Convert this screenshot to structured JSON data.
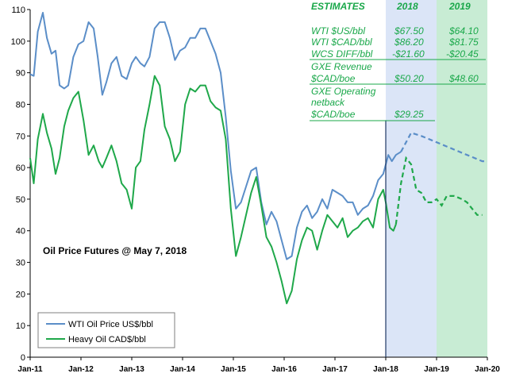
{
  "chart_data": {
    "type": "line",
    "annotation": "Oil Price Futures @ May 7, 2018",
    "y_ticks": [
      "0",
      "10",
      "20",
      "30",
      "40",
      "50",
      "60",
      "70",
      "80",
      "90",
      "100",
      "110"
    ],
    "ylim": [
      0,
      110
    ],
    "x_ticks": [
      "Jan-11",
      "Jan-12",
      "Jan-13",
      "Jan-14",
      "Jan-15",
      "Jan-16",
      "Jan-17",
      "Jan-18",
      "Jan-19",
      "Jan-20"
    ],
    "xlim": [
      2011,
      2020
    ],
    "shaded_periods": [
      {
        "label": "2018",
        "from": 2018.0,
        "to": 2019.0,
        "color": "#dbe5f7"
      },
      {
        "label": "2019",
        "from": 2019.0,
        "to": 2020.0,
        "color": "#c8ecd4"
      }
    ],
    "marker_x": 2018.0,
    "series": [
      {
        "name": "WTI Oil Price US$/bbl",
        "color": "#5b8ec8",
        "actual": [
          [
            2011.0,
            89.5
          ],
          [
            2011.07,
            89
          ],
          [
            2011.15,
            103
          ],
          [
            2011.25,
            109
          ],
          [
            2011.33,
            101
          ],
          [
            2011.42,
            96
          ],
          [
            2011.5,
            97
          ],
          [
            2011.58,
            86
          ],
          [
            2011.67,
            85
          ],
          [
            2011.75,
            86
          ],
          [
            2011.85,
            95
          ],
          [
            2011.95,
            99
          ],
          [
            2012.05,
            100
          ],
          [
            2012.15,
            106
          ],
          [
            2012.25,
            104
          ],
          [
            2012.33,
            95
          ],
          [
            2012.42,
            83
          ],
          [
            2012.5,
            87
          ],
          [
            2012.6,
            93
          ],
          [
            2012.7,
            95
          ],
          [
            2012.8,
            89
          ],
          [
            2012.9,
            88
          ],
          [
            2013.0,
            93
          ],
          [
            2013.08,
            95
          ],
          [
            2013.17,
            93
          ],
          [
            2013.25,
            92
          ],
          [
            2013.35,
            95
          ],
          [
            2013.45,
            104
          ],
          [
            2013.55,
            106
          ],
          [
            2013.65,
            106
          ],
          [
            2013.75,
            101
          ],
          [
            2013.85,
            94
          ],
          [
            2013.95,
            97
          ],
          [
            2014.05,
            98
          ],
          [
            2014.15,
            101
          ],
          [
            2014.25,
            101
          ],
          [
            2014.35,
            104
          ],
          [
            2014.45,
            104
          ],
          [
            2014.55,
            100
          ],
          [
            2014.65,
            96
          ],
          [
            2014.75,
            90
          ],
          [
            2014.85,
            76
          ],
          [
            2014.95,
            59
          ],
          [
            2015.05,
            47
          ],
          [
            2015.15,
            49
          ],
          [
            2015.25,
            54
          ],
          [
            2015.35,
            59
          ],
          [
            2015.45,
            60
          ],
          [
            2015.55,
            49
          ],
          [
            2015.65,
            42
          ],
          [
            2015.75,
            46
          ],
          [
            2015.85,
            43
          ],
          [
            2015.95,
            37
          ],
          [
            2016.05,
            31
          ],
          [
            2016.15,
            32
          ],
          [
            2016.25,
            41
          ],
          [
            2016.35,
            46
          ],
          [
            2016.45,
            48
          ],
          [
            2016.55,
            44
          ],
          [
            2016.65,
            46
          ],
          [
            2016.75,
            50
          ],
          [
            2016.85,
            47
          ],
          [
            2016.95,
            53
          ],
          [
            2017.05,
            52
          ],
          [
            2017.15,
            51
          ],
          [
            2017.25,
            49
          ],
          [
            2017.35,
            49
          ],
          [
            2017.45,
            45
          ],
          [
            2017.55,
            47
          ],
          [
            2017.65,
            48
          ],
          [
            2017.75,
            51
          ],
          [
            2017.85,
            56
          ],
          [
            2017.95,
            58
          ],
          [
            2018.05,
            64
          ],
          [
            2018.12,
            62
          ],
          [
            2018.2,
            64
          ],
          [
            2018.3,
            65
          ]
        ],
        "forecast": [
          [
            2018.3,
            65
          ],
          [
            2018.4,
            68
          ],
          [
            2018.5,
            71
          ],
          [
            2018.7,
            70
          ],
          [
            2019.0,
            68
          ],
          [
            2019.3,
            66
          ],
          [
            2019.6,
            64
          ],
          [
            2019.9,
            62
          ],
          [
            2020.0,
            62
          ]
        ]
      },
      {
        "name": "Heavy Oil CAD$/bbl",
        "color": "#1fa84a",
        "actual": [
          [
            2011.0,
            63
          ],
          [
            2011.07,
            55
          ],
          [
            2011.15,
            69
          ],
          [
            2011.25,
            77
          ],
          [
            2011.33,
            71
          ],
          [
            2011.42,
            66
          ],
          [
            2011.5,
            58
          ],
          [
            2011.58,
            63
          ],
          [
            2011.67,
            73
          ],
          [
            2011.75,
            78
          ],
          [
            2011.85,
            82
          ],
          [
            2011.95,
            84
          ],
          [
            2012.05,
            75
          ],
          [
            2012.15,
            64
          ],
          [
            2012.25,
            67
          ],
          [
            2012.35,
            62
          ],
          [
            2012.42,
            60
          ],
          [
            2012.5,
            63
          ],
          [
            2012.6,
            67
          ],
          [
            2012.7,
            62
          ],
          [
            2012.8,
            55
          ],
          [
            2012.9,
            53
          ],
          [
            2013.0,
            47
          ],
          [
            2013.08,
            60
          ],
          [
            2013.17,
            62
          ],
          [
            2013.25,
            72
          ],
          [
            2013.35,
            80
          ],
          [
            2013.45,
            89
          ],
          [
            2013.55,
            86
          ],
          [
            2013.65,
            73
          ],
          [
            2013.75,
            69
          ],
          [
            2013.85,
            62
          ],
          [
            2013.95,
            65
          ],
          [
            2014.05,
            80
          ],
          [
            2014.15,
            85
          ],
          [
            2014.25,
            84
          ],
          [
            2014.35,
            86
          ],
          [
            2014.45,
            86
          ],
          [
            2014.55,
            81
          ],
          [
            2014.65,
            79
          ],
          [
            2014.75,
            78
          ],
          [
            2014.85,
            69
          ],
          [
            2014.95,
            47
          ],
          [
            2015.05,
            32
          ],
          [
            2015.15,
            38
          ],
          [
            2015.25,
            45
          ],
          [
            2015.35,
            52
          ],
          [
            2015.45,
            57
          ],
          [
            2015.55,
            48
          ],
          [
            2015.65,
            38
          ],
          [
            2015.75,
            35
          ],
          [
            2015.85,
            30
          ],
          [
            2015.95,
            24
          ],
          [
            2016.05,
            17
          ],
          [
            2016.15,
            21
          ],
          [
            2016.25,
            31
          ],
          [
            2016.35,
            37
          ],
          [
            2016.45,
            41
          ],
          [
            2016.55,
            40
          ],
          [
            2016.65,
            34
          ],
          [
            2016.75,
            40
          ],
          [
            2016.85,
            45
          ],
          [
            2016.95,
            43
          ],
          [
            2017.05,
            41
          ],
          [
            2017.15,
            44
          ],
          [
            2017.25,
            38
          ],
          [
            2017.35,
            40
          ],
          [
            2017.45,
            41
          ],
          [
            2017.55,
            43
          ],
          [
            2017.65,
            44
          ],
          [
            2017.75,
            41
          ],
          [
            2017.85,
            50
          ],
          [
            2017.95,
            53
          ],
          [
            2018.0,
            49
          ],
          [
            2018.08,
            41
          ],
          [
            2018.15,
            40
          ],
          [
            2018.2,
            42
          ]
        ],
        "forecast": [
          [
            2018.2,
            42
          ],
          [
            2018.3,
            55
          ],
          [
            2018.4,
            63
          ],
          [
            2018.5,
            61
          ],
          [
            2018.6,
            53
          ],
          [
            2018.7,
            52
          ],
          [
            2018.8,
            49
          ],
          [
            2018.9,
            49
          ],
          [
            2019.0,
            50
          ],
          [
            2019.1,
            48
          ],
          [
            2019.2,
            51
          ],
          [
            2019.35,
            51
          ],
          [
            2019.5,
            50
          ],
          [
            2019.6,
            49
          ],
          [
            2019.7,
            47
          ],
          [
            2019.8,
            45
          ],
          [
            2019.9,
            45
          ]
        ]
      }
    ],
    "estimates": {
      "title": "ESTIMATES",
      "col_2018": "2018",
      "col_2019": "2019",
      "rows": [
        {
          "label": "WTI $US/bbl",
          "v2018": "$67.50",
          "v2019": "$64.10"
        },
        {
          "label": "WTI $CAD/bbl",
          "v2018": "$86.20",
          "v2019": "$81.75"
        },
        {
          "label": "WCS DIFF/bbl",
          "v2018": "-$21.60",
          "v2019": "-$20.45"
        }
      ],
      "revenue_label_1": "GXE Revenue",
      "revenue_label_2": "$CAD/boe",
      "revenue_2018": "$50.20",
      "revenue_2019": "$48.60",
      "netback_label_1": "GXE Operating",
      "netback_label_2": "netback",
      "netback_label_3": "$CAD/boe",
      "netback_2018": "$29.25"
    },
    "legend_position": "bottom-left",
    "grid": false
  }
}
